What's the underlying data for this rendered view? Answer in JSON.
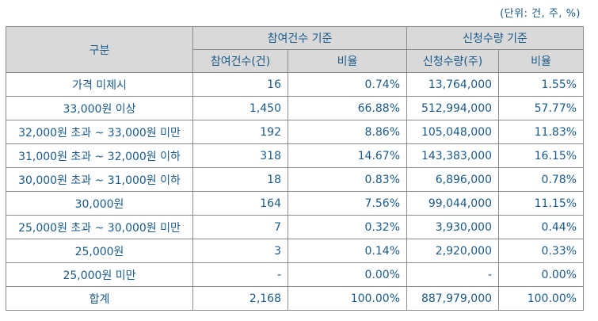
{
  "unit_note": "(단위: 건, 주, %)",
  "header": {
    "category": "구분",
    "group_participation": "참여건수 기준",
    "group_subscription": "신청수량 기준",
    "participation_count": "참여건수(건)",
    "participation_ratio": "비율",
    "subscription_qty": "신청수량(주)",
    "subscription_ratio": "비율"
  },
  "rows": [
    {
      "label": "가격 미제시",
      "count": "16",
      "count_ratio": "0.74%",
      "qty": "13,764,000",
      "qty_ratio": "1.55%"
    },
    {
      "label": "33,000원 이상",
      "count": "1,450",
      "count_ratio": "66.88%",
      "qty": "512,994,000",
      "qty_ratio": "57.77%"
    },
    {
      "label": "32,000원 초과 ~ 33,000원 미만",
      "count": "192",
      "count_ratio": "8.86%",
      "qty": "105,048,000",
      "qty_ratio": "11.83%"
    },
    {
      "label": "31,000원 초과 ~ 32,000원 이하",
      "count": "318",
      "count_ratio": "14.67%",
      "qty": "143,383,000",
      "qty_ratio": "16.15%"
    },
    {
      "label": "30,000원 초과 ~ 31,000원 이하",
      "count": "18",
      "count_ratio": "0.83%",
      "qty": "6,896,000",
      "qty_ratio": "0.78%"
    },
    {
      "label": "30,000원",
      "count": "164",
      "count_ratio": "7.56%",
      "qty": "99,044,000",
      "qty_ratio": "11.15%"
    },
    {
      "label": "25,000원 초과 ~ 30,000원 미만",
      "count": "7",
      "count_ratio": "0.32%",
      "qty": "3,930,000",
      "qty_ratio": "0.44%"
    },
    {
      "label": "25,000원",
      "count": "3",
      "count_ratio": "0.14%",
      "qty": "2,920,000",
      "qty_ratio": "0.33%"
    },
    {
      "label": "25,000원 미만",
      "count": "-",
      "count_ratio": "0.00%",
      "qty": "-",
      "qty_ratio": "0.00%"
    },
    {
      "label": "합계",
      "count": "2,168",
      "count_ratio": "100.00%",
      "qty": "887,979,000",
      "qty_ratio": "100.00%"
    }
  ]
}
